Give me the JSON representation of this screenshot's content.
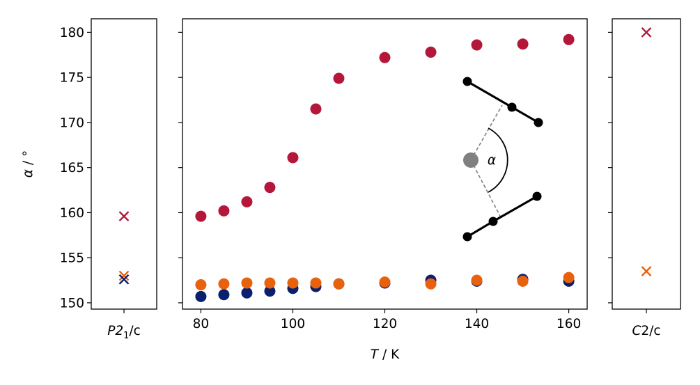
{
  "chart_data": [
    {
      "type": "scatter",
      "panel": "left",
      "xlabel_main": "P2",
      "xlabel_sub": "1",
      "xlabel_rest": "/c",
      "ylabel_alpha": "α",
      "ylabel_rest": " / °",
      "ylim": [
        149.3,
        181.5
      ],
      "y_ticks": [
        150,
        155,
        160,
        165,
        170,
        175,
        180
      ],
      "marker": "x",
      "series": [
        {
          "color": "#b5173a",
          "values": [
            159.6
          ]
        },
        {
          "color": "#e8620d",
          "values": [
            153.0
          ]
        },
        {
          "color": "#0a1f6e",
          "values": [
            152.6
          ]
        }
      ]
    },
    {
      "type": "scatter",
      "panel": "main",
      "xlabel_var": "T",
      "xlabel_rest": " / K",
      "xlim": [
        76,
        164
      ],
      "ylim": [
        149.3,
        181.5
      ],
      "x_ticks": [
        80,
        100,
        120,
        140,
        160
      ],
      "y_ticks": [
        150,
        155,
        160,
        165,
        170,
        175,
        180
      ],
      "marker": "circle",
      "series": [
        {
          "color": "#0a1f6e",
          "x": [
            80,
            85,
            90,
            95,
            100,
            105,
            110,
            120,
            130,
            140,
            150,
            160
          ],
          "y": [
            150.7,
            150.9,
            151.1,
            151.3,
            151.6,
            151.8,
            152.1,
            152.2,
            152.5,
            152.4,
            152.6,
            152.4
          ]
        },
        {
          "color": "#e8620d",
          "x": [
            80,
            85,
            90,
            95,
            100,
            105,
            110,
            120,
            130,
            140,
            150,
            160
          ],
          "y": [
            152.0,
            152.1,
            152.2,
            152.2,
            152.2,
            152.2,
            152.1,
            152.3,
            152.1,
            152.5,
            152.4,
            152.8
          ]
        },
        {
          "color": "#b5173a",
          "x": [
            80,
            85,
            90,
            95,
            100,
            105,
            110,
            120,
            130,
            140,
            150,
            160
          ],
          "y": [
            159.6,
            160.2,
            161.2,
            162.8,
            166.1,
            171.5,
            174.9,
            177.2,
            177.8,
            178.6,
            178.7,
            179.2
          ]
        }
      ],
      "inset_label": "α"
    },
    {
      "type": "scatter",
      "panel": "right",
      "xlabel_main": "C",
      "xlabel_rest": "2/c",
      "ylim": [
        149.3,
        181.5
      ],
      "marker": "x",
      "series": [
        {
          "color": "#b5173a",
          "values": [
            180.0
          ]
        },
        {
          "color": "#e8620d",
          "values": [
            153.5
          ]
        }
      ]
    }
  ]
}
